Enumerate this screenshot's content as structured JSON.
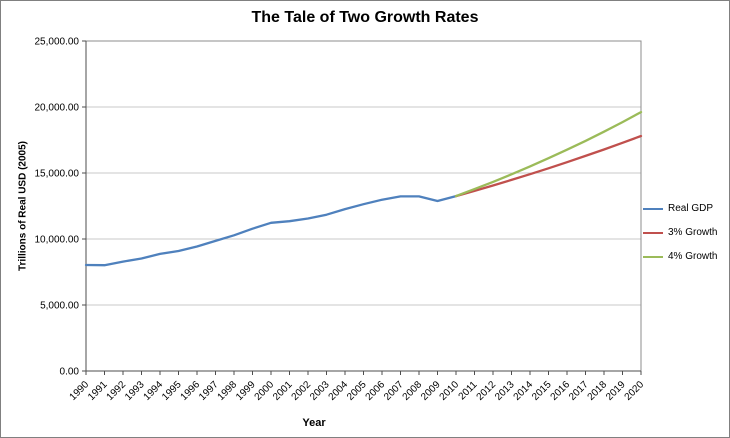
{
  "chart_data": {
    "type": "line",
    "title": "The Tale of Two Growth Rates",
    "xlabel": "Year",
    "ylabel": "Trillions of Real USD (2005)",
    "ylim": [
      0,
      25000
    ],
    "ytick_interval": 5000,
    "ytick_values": [
      0,
      5000,
      10000,
      15000,
      20000,
      25000
    ],
    "ytick_labels": [
      "0.00",
      "5,000.00",
      "10,000.00",
      "15,000.00",
      "20,000.00",
      "25,000.00"
    ],
    "grid": true,
    "legend_position": "right",
    "x": [
      1990,
      1991,
      1992,
      1993,
      1994,
      1995,
      1996,
      1997,
      1998,
      1999,
      2000,
      2001,
      2002,
      2003,
      2004,
      2005,
      2006,
      2007,
      2008,
      2009,
      2010,
      2011,
      2012,
      2013,
      2014,
      2015,
      2016,
      2017,
      2018,
      2019,
      2020
    ],
    "series": [
      {
        "name": "Real GDP",
        "color": "#4F81BD",
        "values": [
          8034,
          8015,
          8287,
          8523,
          8871,
          9094,
          9434,
          9854,
          10284,
          10780,
          11226,
          11347,
          11553,
          11841,
          12264,
          12638,
          12976,
          13229,
          13229,
          12881,
          13248,
          null,
          null,
          null,
          null,
          null,
          null,
          null,
          null,
          null,
          null
        ]
      },
      {
        "name": "3% Growth",
        "color": "#C0504D",
        "values": [
          null,
          null,
          null,
          null,
          null,
          null,
          null,
          null,
          null,
          null,
          null,
          null,
          null,
          null,
          null,
          null,
          null,
          null,
          null,
          null,
          13248,
          13646,
          14055,
          14477,
          14911,
          15358,
          15819,
          16294,
          16783,
          17286,
          17805
        ]
      },
      {
        "name": "4% Growth",
        "color": "#9BBB59",
        "values": [
          null,
          null,
          null,
          null,
          null,
          null,
          null,
          null,
          null,
          null,
          null,
          null,
          null,
          null,
          null,
          null,
          null,
          null,
          null,
          null,
          13248,
          13778,
          14329,
          14903,
          15499,
          16119,
          16763,
          17434,
          18131,
          18857,
          19611
        ]
      }
    ]
  },
  "colors": {
    "gridline": "#C9C9C9",
    "axis": "#4D4D4D",
    "plot_border": "#8C8C8C",
    "text": "#000000"
  }
}
